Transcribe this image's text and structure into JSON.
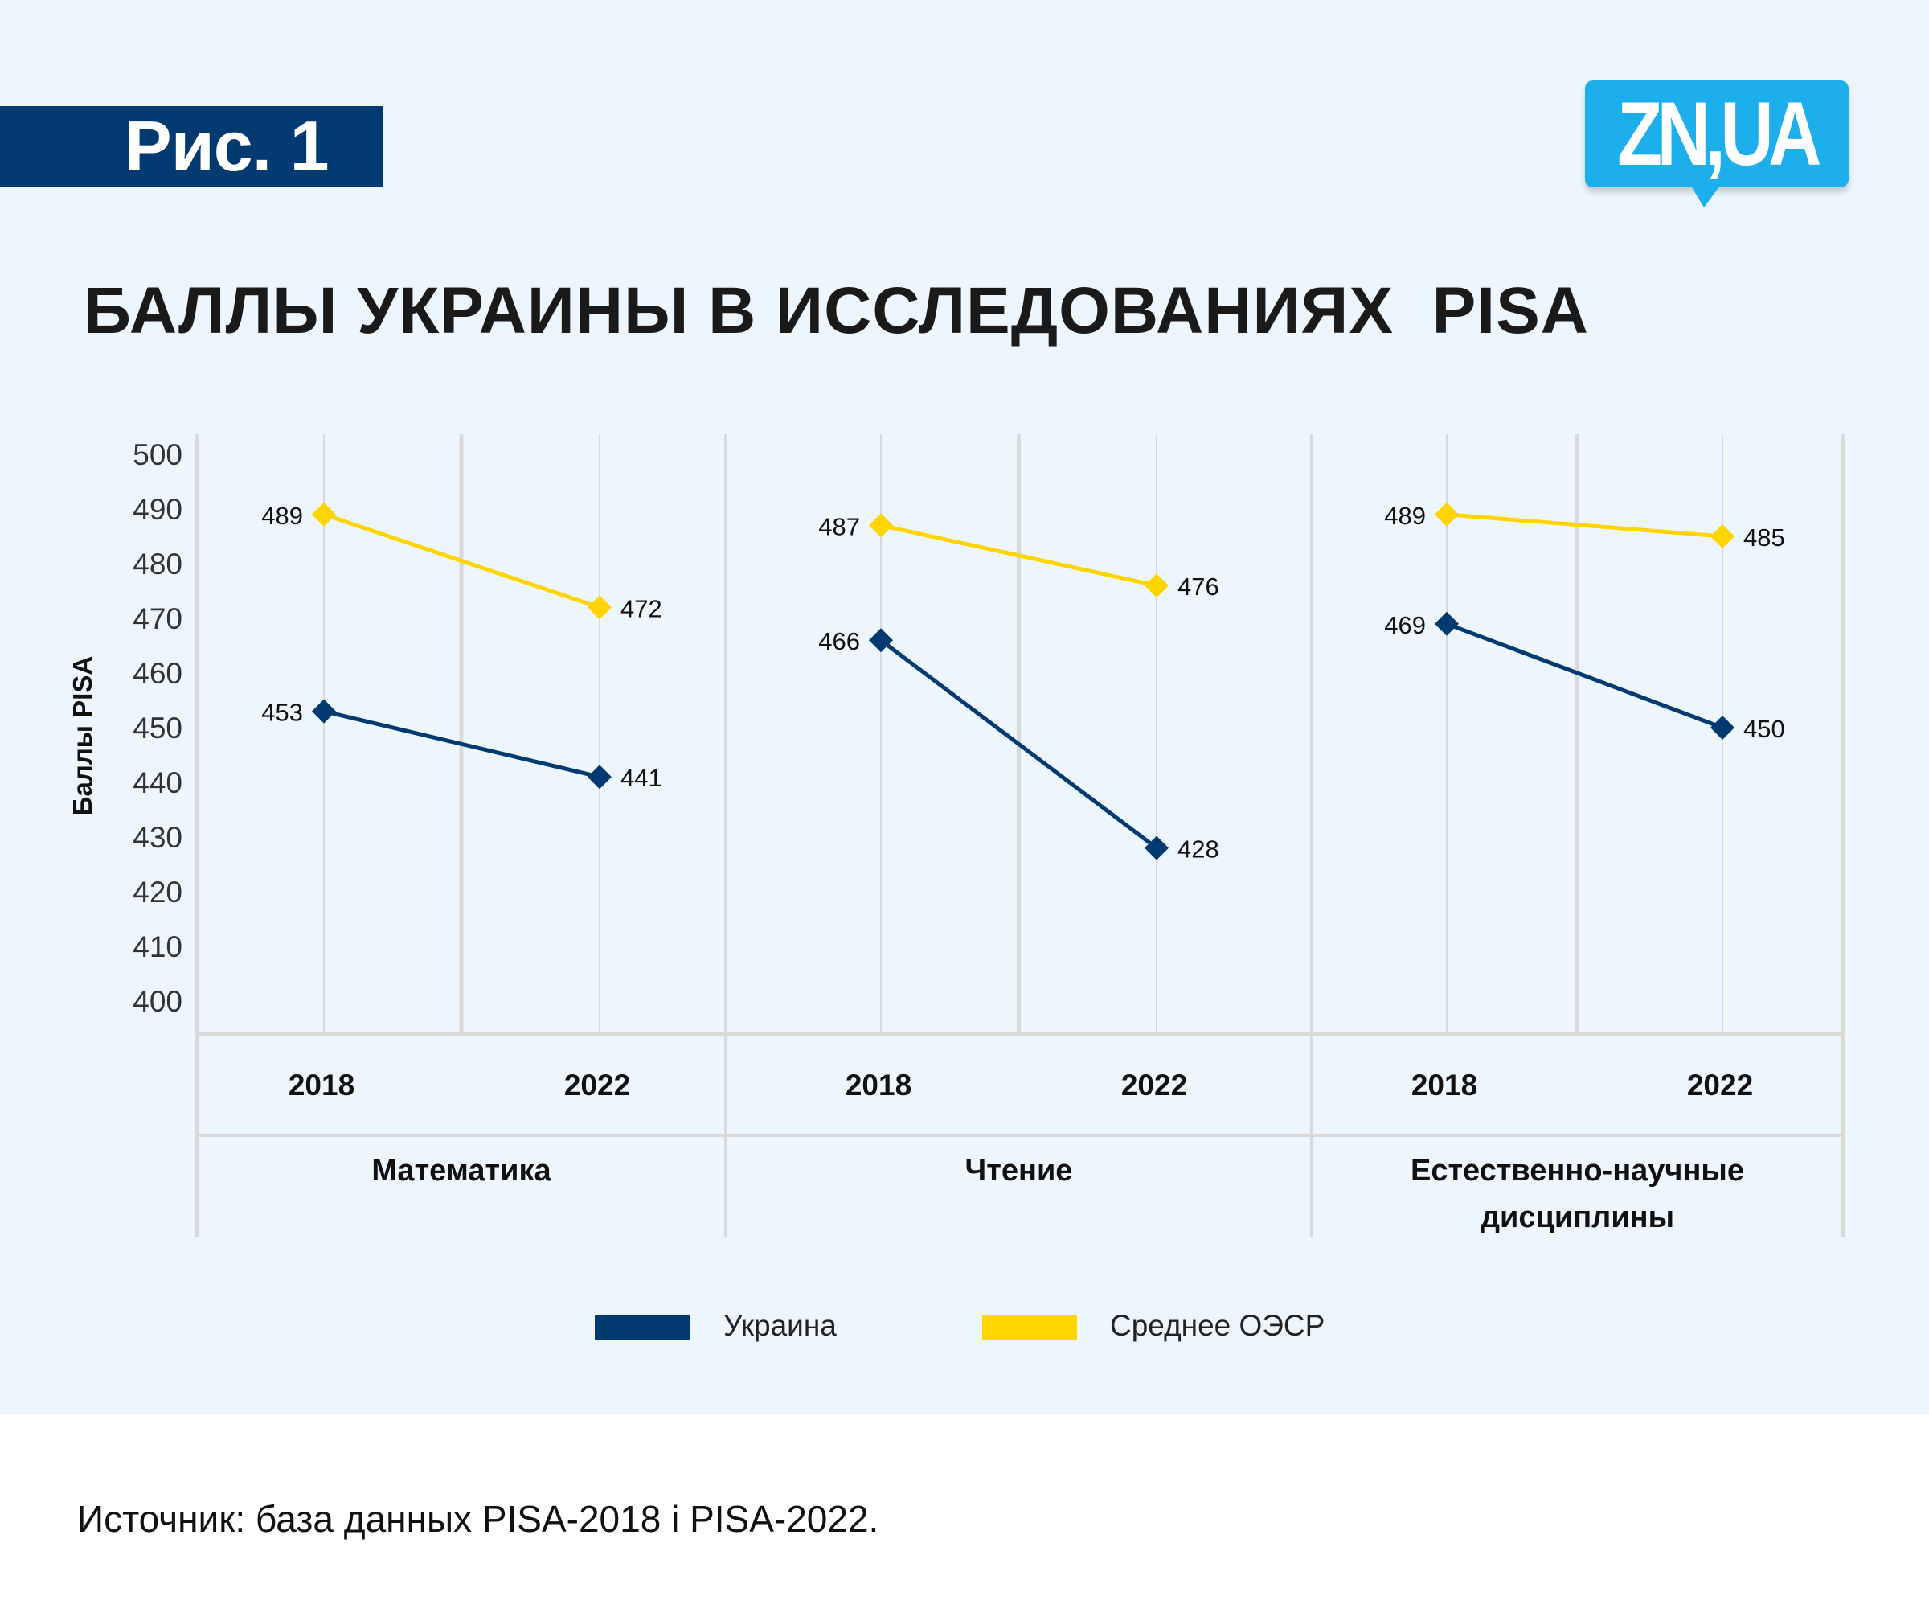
{
  "figure_label": "Рис. 1",
  "logo_text": "ZN,UA",
  "title": "БАЛЛЫ УКРАИНЫ В ИССЛЕДОВАНИЯХ  PISA",
  "source": "Источник: база данных PISA-2018 і PISA-2022.",
  "colors": {
    "ukraine": "#003A70",
    "oecd": "#FFD500",
    "background": "#EEF6FD",
    "logo": "#1DAEEC",
    "grid": "#D9D9D9"
  },
  "chart_data": {
    "type": "line",
    "title": "БАЛЛЫ УКРАИНЫ В ИССЛЕДОВАНИЯХ  PISA",
    "ylabel": "Баллы PISA",
    "xlabel": "",
    "ylim": [
      400,
      500
    ],
    "yticks": [
      500,
      490,
      480,
      470,
      460,
      450,
      440,
      430,
      420,
      410,
      400
    ],
    "grid": true,
    "legend_position": "bottom",
    "groups": [
      {
        "name": "Математика",
        "lines": [
          "Математика"
        ],
        "years": [
          "2018",
          "2022"
        ],
        "ukraine": [
          453,
          441
        ],
        "oecd": [
          489,
          472
        ]
      },
      {
        "name": "Чтение",
        "lines": [
          "Чтение"
        ],
        "years": [
          "2018",
          "2022"
        ],
        "ukraine": [
          466,
          428
        ],
        "oecd": [
          487,
          476
        ]
      },
      {
        "name": "Естественно-научные дисциплины",
        "lines": [
          "Естественно-научные",
          "дисциплины"
        ],
        "years": [
          "2018",
          "2022"
        ],
        "ukraine": [
          469,
          450
        ],
        "oecd": [
          489,
          485
        ]
      }
    ],
    "series": [
      {
        "name": "Украина",
        "marker": "diamond"
      },
      {
        "name": "Среднее ОЭСР",
        "marker": "diamond"
      }
    ]
  }
}
